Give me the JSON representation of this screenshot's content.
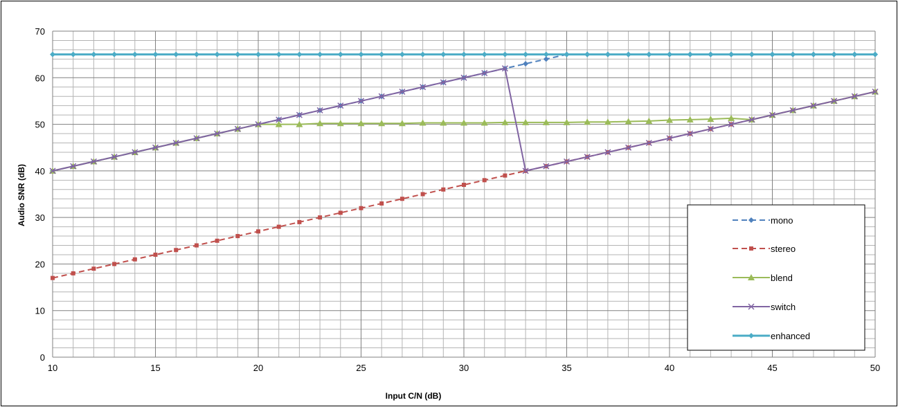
{
  "chart_data": {
    "type": "line",
    "xlabel": "Input C/N (dB)",
    "ylabel": "Audio SNR (dB)",
    "xlim": [
      10,
      50
    ],
    "ylim": [
      0,
      70
    ],
    "x_ticks": [
      10,
      15,
      20,
      25,
      30,
      35,
      40,
      45,
      50
    ],
    "x_tick_labels": [
      "10",
      "15",
      "20",
      "25",
      "30",
      "35",
      "40",
      "45",
      "50"
    ],
    "y_ticks": [
      0,
      10,
      20,
      30,
      40,
      50,
      60,
      70
    ],
    "y_tick_labels": [
      "0",
      "10",
      "20",
      "30",
      "40",
      "50",
      "60",
      "70"
    ],
    "grid": "major and minor (x every 1 dB, y every 2 dB)",
    "legend_position": "bottom-right",
    "series": [
      {
        "name": "mono",
        "color": "#4F81BD",
        "line_style": "dashed",
        "marker": "diamond",
        "x": [
          10,
          11,
          12,
          13,
          14,
          15,
          16,
          17,
          18,
          19,
          20,
          21,
          22,
          23,
          24,
          25,
          26,
          27,
          28,
          29,
          30,
          31,
          32,
          33,
          34,
          35,
          36,
          37,
          38,
          39,
          40,
          41,
          42,
          43,
          44,
          45,
          46,
          47,
          48,
          49,
          50
        ],
        "y": [
          40,
          41,
          42,
          43,
          44,
          45,
          46,
          47,
          48,
          49,
          50,
          51,
          52,
          53,
          54,
          55,
          56,
          57,
          58,
          59,
          60,
          61,
          62,
          63,
          64,
          65,
          65,
          65,
          65,
          65,
          65,
          65,
          65,
          65,
          65,
          65,
          65,
          65,
          65,
          65,
          65
        ]
      },
      {
        "name": "stereo",
        "color": "#C0504D",
        "line_style": "dashed",
        "marker": "square",
        "x": [
          10,
          11,
          12,
          13,
          14,
          15,
          16,
          17,
          18,
          19,
          20,
          21,
          22,
          23,
          24,
          25,
          26,
          27,
          28,
          29,
          30,
          31,
          32,
          33,
          34,
          35,
          36,
          37,
          38,
          39,
          40,
          41,
          42,
          43,
          44,
          45,
          46,
          47,
          48,
          49,
          50
        ],
        "y": [
          17,
          18,
          19,
          20,
          21,
          22,
          23,
          24,
          25,
          26,
          27,
          28,
          29,
          30,
          31,
          32,
          33,
          34,
          35,
          36,
          37,
          38,
          39,
          40,
          41,
          42,
          43,
          44,
          45,
          46,
          47,
          48,
          49,
          50,
          51,
          52,
          53,
          54,
          55,
          56,
          57
        ]
      },
      {
        "name": "blend",
        "color": "#9BBB59",
        "line_style": "solid",
        "marker": "triangle",
        "x": [
          10,
          11,
          12,
          13,
          14,
          15,
          16,
          17,
          18,
          19,
          20,
          21,
          22,
          23,
          24,
          25,
          26,
          27,
          28,
          29,
          30,
          31,
          32,
          33,
          34,
          35,
          36,
          37,
          38,
          39,
          40,
          41,
          42,
          43,
          44,
          45,
          46,
          47,
          48,
          49,
          50
        ],
        "y": [
          40,
          41,
          42,
          43,
          44,
          45,
          46,
          47,
          48,
          49,
          50,
          50,
          50,
          50.2,
          50.2,
          50.2,
          50.2,
          50.2,
          50.3,
          50.3,
          50.3,
          50.3,
          50.4,
          50.4,
          50.4,
          50.4,
          50.5,
          50.5,
          50.6,
          50.7,
          50.9,
          51,
          51.1,
          51.3,
          51,
          52,
          53,
          54,
          55,
          56,
          57
        ]
      },
      {
        "name": "switch",
        "color": "#8064A2",
        "line_style": "solid",
        "marker": "x",
        "x": [
          10,
          11,
          12,
          13,
          14,
          15,
          16,
          17,
          18,
          19,
          20,
          21,
          22,
          23,
          24,
          25,
          26,
          27,
          28,
          29,
          30,
          31,
          32,
          33,
          34,
          35,
          36,
          37,
          38,
          39,
          40,
          41,
          42,
          43,
          44,
          45,
          46,
          47,
          48,
          49,
          50
        ],
        "y": [
          40,
          41,
          42,
          43,
          44,
          45,
          46,
          47,
          48,
          49,
          50,
          51,
          52,
          53,
          54,
          55,
          56,
          57,
          58,
          59,
          60,
          61,
          62,
          40,
          41,
          42,
          43,
          44,
          45,
          46,
          47,
          48,
          49,
          50,
          51,
          52,
          53,
          54,
          55,
          56,
          57
        ]
      },
      {
        "name": "enhanced",
        "color": "#4BACC6",
        "line_style": "solid",
        "marker": "diamond",
        "x": [
          10,
          11,
          12,
          13,
          14,
          15,
          16,
          17,
          18,
          19,
          20,
          21,
          22,
          23,
          24,
          25,
          26,
          27,
          28,
          29,
          30,
          31,
          32,
          33,
          34,
          35,
          36,
          37,
          38,
          39,
          40,
          41,
          42,
          43,
          44,
          45,
          46,
          47,
          48,
          49,
          50
        ],
        "y": [
          65,
          65,
          65,
          65,
          65,
          65,
          65,
          65,
          65,
          65,
          65,
          65,
          65,
          65,
          65,
          65,
          65,
          65,
          65,
          65,
          65,
          65,
          65,
          65,
          65,
          65,
          65,
          65,
          65,
          65,
          65,
          65,
          65,
          65,
          65,
          65,
          65,
          65,
          65,
          65,
          65
        ]
      }
    ]
  }
}
